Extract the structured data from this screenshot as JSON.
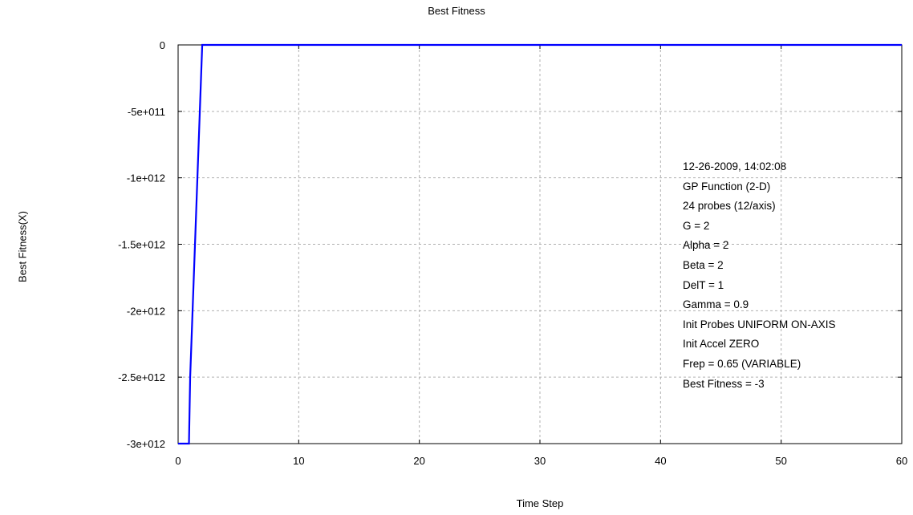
{
  "chart_data": {
    "type": "line",
    "title": "Best Fitness",
    "xlabel": "Time Step",
    "ylabel": "Best Fitness(X)",
    "xlim": [
      0,
      60
    ],
    "ylim": [
      -3000000000000.0,
      0
    ],
    "x_ticks": [
      0,
      10,
      20,
      30,
      40,
      50,
      60
    ],
    "x_tick_labels": [
      "0",
      "10",
      "20",
      "30",
      "40",
      "50",
      "60"
    ],
    "y_ticks": [
      0,
      -500000000000.0,
      -1000000000000.0,
      -1500000000000.0,
      -2000000000000.0,
      -2500000000000.0,
      -3000000000000.0
    ],
    "y_tick_labels": [
      "0",
      "-5e+011",
      "-1e+012",
      "-1.5e+012",
      "-2e+012",
      "-2.5e+012",
      "-3e+012"
    ],
    "grid": true,
    "series": [
      {
        "color": "#0000ff",
        "x": [
          0,
          0.9,
          0.95,
          1.0,
          1.1,
          1.2,
          1.3,
          1.4,
          1.5,
          1.6,
          1.7,
          1.8,
          1.9,
          2.0,
          60
        ],
        "y": [
          -3000000000000.0,
          -3000000000000.0,
          -2750000000000.0,
          -2500000000000.0,
          -2250000000000.0,
          -2000000000000.0,
          -1750000000000.0,
          -1500000000000.0,
          -1250000000000.0,
          -1000000000000.0,
          -750000000000.0,
          -500000000000.0,
          -250000000000.0,
          0,
          0
        ]
      }
    ],
    "annotations": [
      "12-26-2009, 14:02:08",
      "GP Function (2-D)",
      "24 probes (12/axis)",
      "G = 2",
      "Alpha = 2",
      "Beta = 2",
      "DelT = 1",
      "Gamma = 0.9",
      "Init Probes UNIFORM ON-AXIS",
      "Init Accel ZERO",
      "Frep = 0.65 (VARIABLE)",
      "Best Fitness = -3"
    ]
  }
}
